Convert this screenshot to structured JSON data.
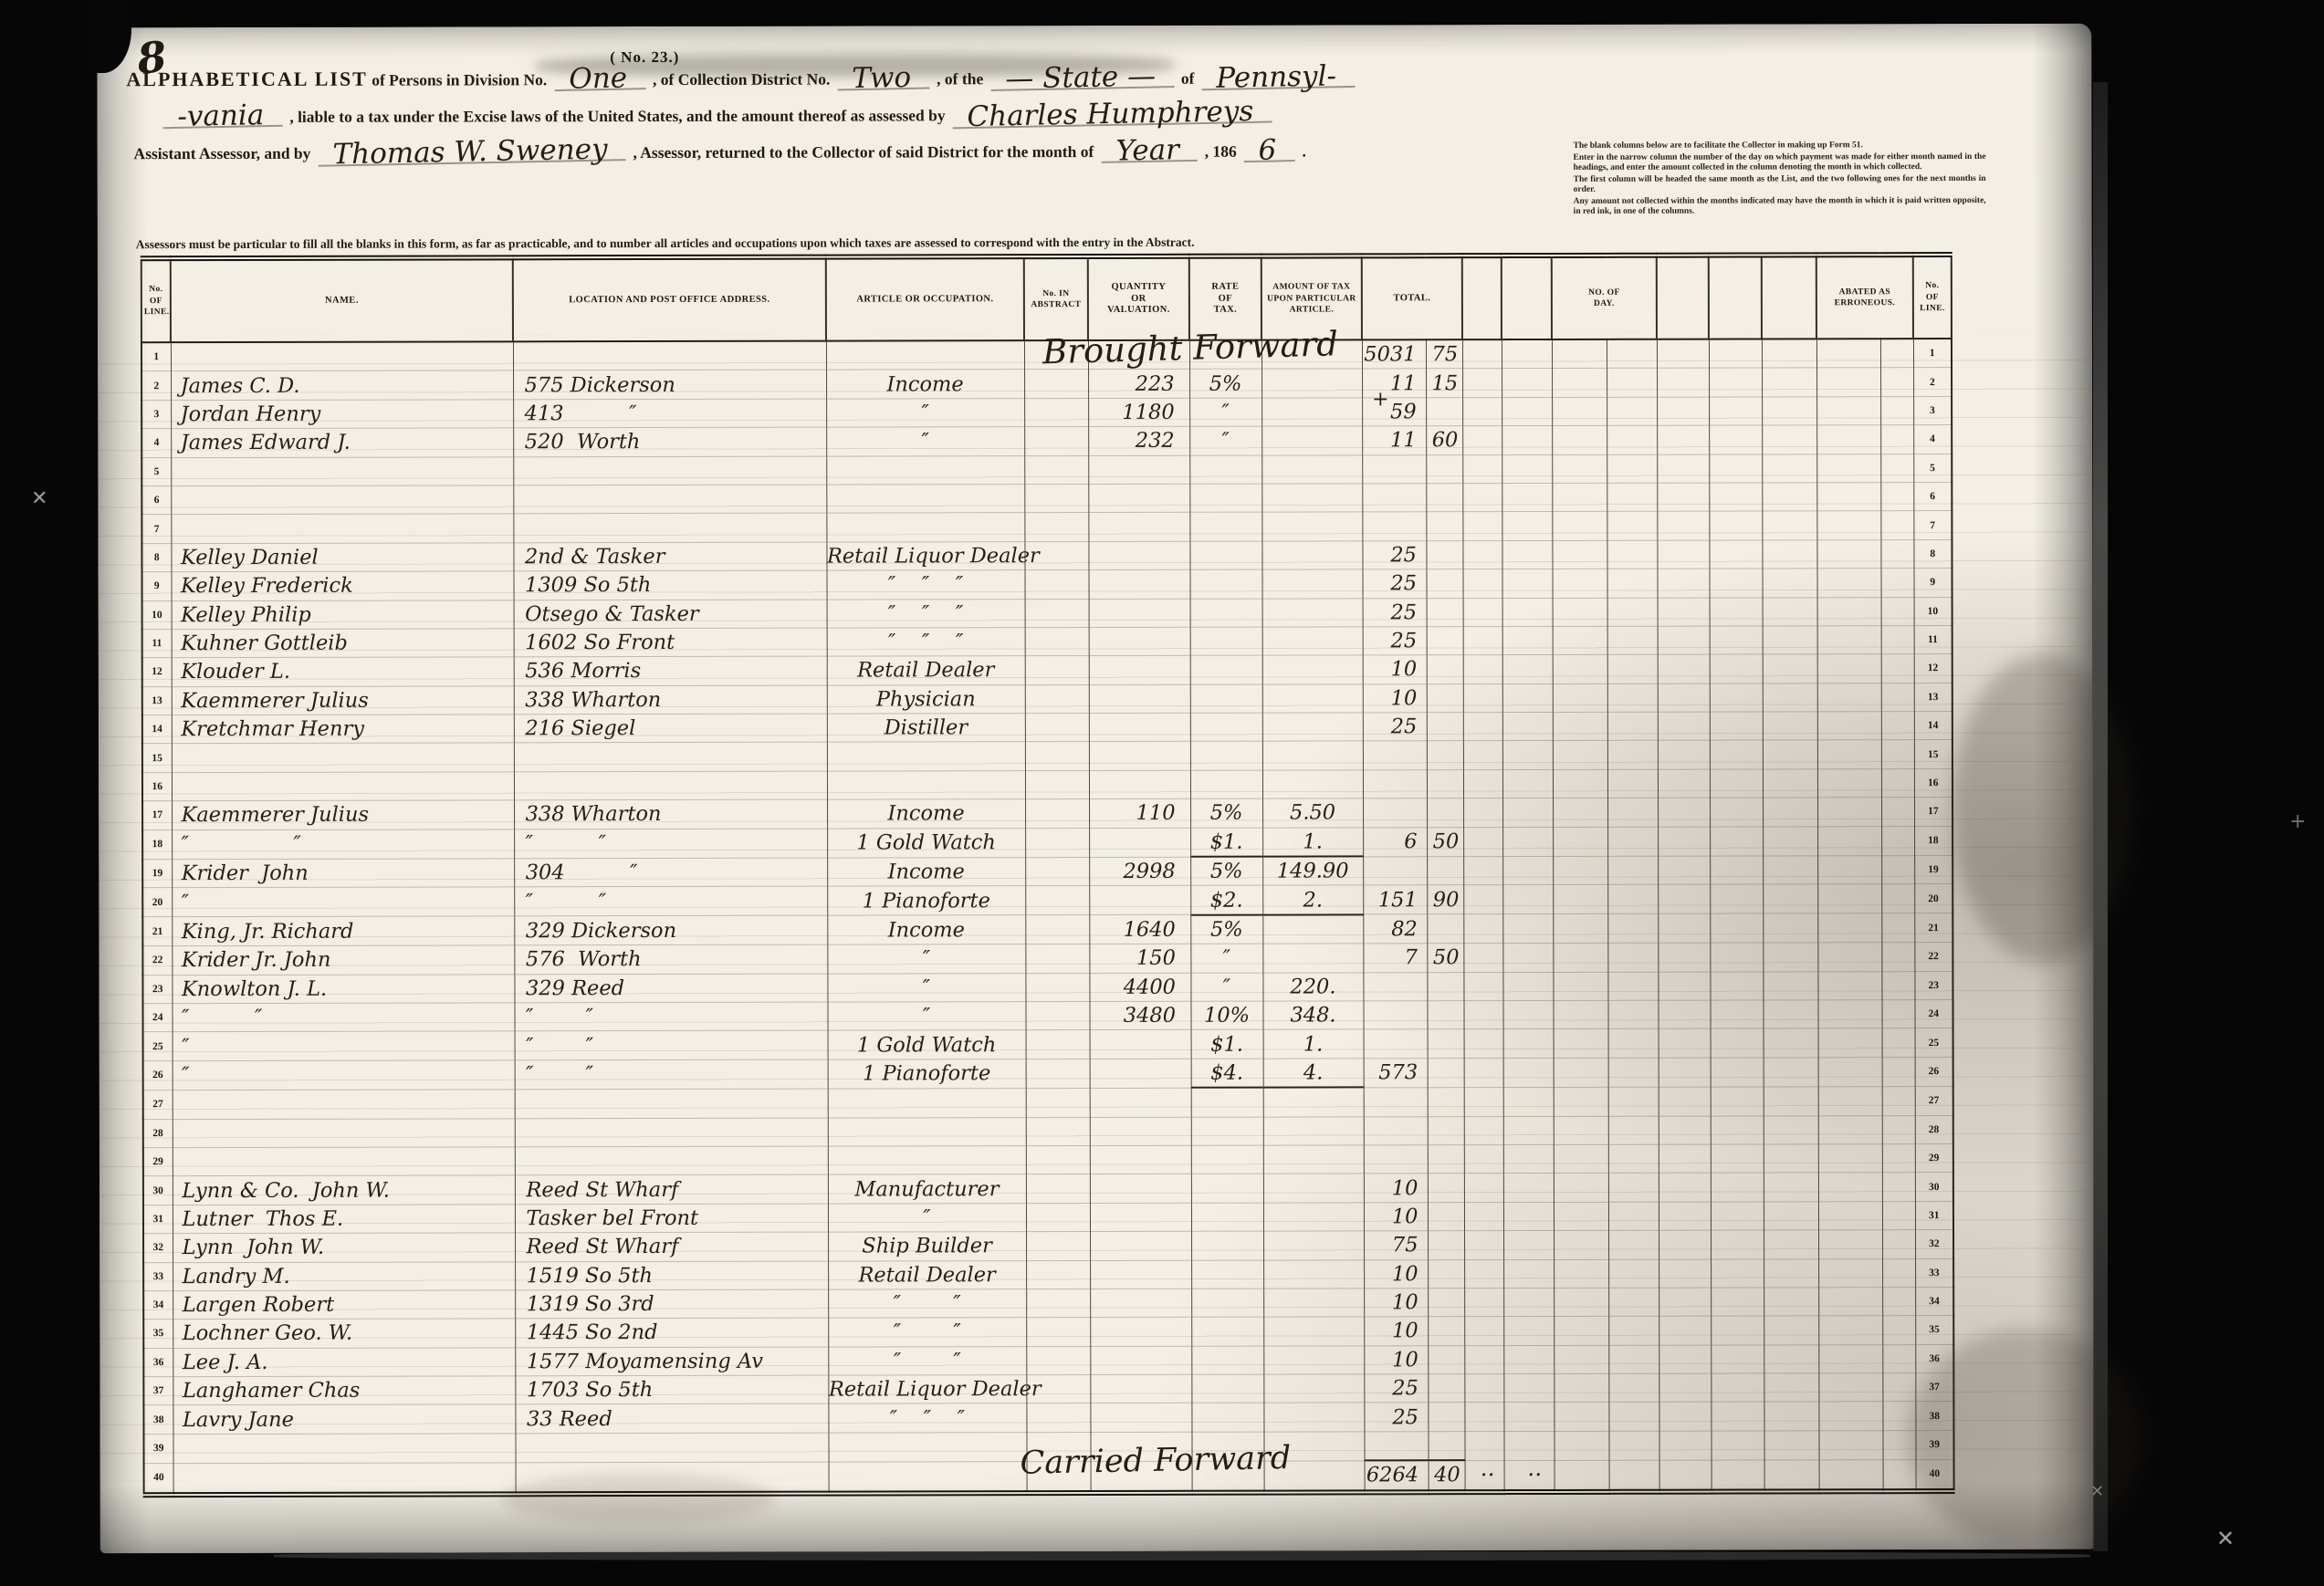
{
  "form_label": "( No. 23.)",
  "page_number": "8",
  "title": {
    "line1": [
      {
        "t": "ALPHABETICAL LIST",
        "w": false
      },
      {
        "t": " of Persons in Division No.",
        "w": false
      },
      {
        "t": "One",
        "w": true
      },
      {
        "t": ", of Collection District No.",
        "w": false
      },
      {
        "t": "Two",
        "w": true
      },
      {
        "t": ", of the",
        "w": false
      },
      {
        "t": "— State —",
        "w": true
      },
      {
        "t": "of",
        "w": false
      },
      {
        "t": "Pennsyl-",
        "w": true
      }
    ],
    "line2": [
      {
        "t": "-vania",
        "w": true
      },
      {
        "t": ", liable to a tax under the Excise laws of the United States, and the amount thereof as assessed by",
        "w": false
      },
      {
        "t": "Charles Humphreys",
        "w": true
      }
    ],
    "line3": [
      {
        "t": "Assistant Assessor, and by",
        "w": false
      },
      {
        "t": "Thomas W. Sweney",
        "w": true
      },
      {
        "t": ", Assessor, returned to the Collector of said District for the month of",
        "w": false
      },
      {
        "t": "Year",
        "w": true
      },
      {
        "t": ", 186",
        "w": false
      },
      {
        "t": "6",
        "w": true
      },
      {
        "t": ".",
        "w": false
      }
    ]
  },
  "collector_note": {
    "l1": "The blank columns below are to facilitate the Collector in making up Form 51.",
    "l2": "Enter in the narrow column the number of the day on which payment was made for either month named in the headings, and enter the amount collected in the column denoting the month in which collected.",
    "l3": "The first column will be headed the same month as the List, and the two following ones for the next months in order.",
    "l4": "Any amount not collected within the months indicated may have the month in which it is paid written opposite, in red ink, in one of the columns."
  },
  "assessor_note": "Assessors must be particular to fill all the blanks in this form, as far as practicable, and to number all articles and occupations upon which taxes are assessed to correspond with the entry in the Abstract.",
  "table": {
    "headers": {
      "line_no": "No.\nOF\nLINE.",
      "name": "NAME.",
      "location": "LOCATION AND POST OFFICE ADDRESS.",
      "article": "ARTICLE OR OCCUPATION.",
      "abstract": "No. IN\nABSTRACT",
      "quantity": "QUANTITY\nOR\nVALUATION.",
      "rate": "RATE\nOF\nTAX.",
      "amount": "AMOUNT OF TAX\nUPON PARTICULAR\nARTICLE.",
      "total": "TOTAL.",
      "day": "NO. OF\nDAY.",
      "abated": "ABATED AS\nERRONEOUS.",
      "line_no_right": "No.\nOF\nLINE."
    },
    "rows": [
      {
        "n": 1,
        "td": "5031",
        "tc": "75",
        "span": "brought"
      },
      {
        "n": 2,
        "name": "James C. D.",
        "loc": "575 Dickerson",
        "occ": "Income",
        "qty": "223",
        "rate": "5%",
        "td": "11",
        "tc": "15"
      },
      {
        "n": 3,
        "name": "Jordan Henry",
        "loc": "413          ″",
        "occ": "″",
        "qty": "1180",
        "rate": "″",
        "td": "59"
      },
      {
        "n": 4,
        "name": "James Edward J.",
        "loc": "520  Worth",
        "occ": "″",
        "qty": "232",
        "rate": "″",
        "td": "11",
        "tc": "60"
      },
      {
        "n": 5
      },
      {
        "n": 6
      },
      {
        "n": 7
      },
      {
        "n": 8,
        "name": "Kelley Daniel",
        "loc": "2nd & Tasker",
        "occ": "Retail Liquor Dealer",
        "td": "25"
      },
      {
        "n": 9,
        "name": "Kelley Frederick",
        "loc": "1309 So 5th",
        "occ": "″    ″    ″",
        "td": "25"
      },
      {
        "n": 10,
        "name": "Kelley Philip",
        "loc": "Otsego & Tasker",
        "occ": "″    ″    ″",
        "td": "25"
      },
      {
        "n": 11,
        "name": "Kuhner Gottleib",
        "loc": "1602 So Front",
        "occ": "″    ″    ″",
        "td": "25"
      },
      {
        "n": 12,
        "name": "Klouder L.",
        "loc": "536 Morris",
        "occ": "Retail Dealer",
        "td": "10"
      },
      {
        "n": 13,
        "name": "Kaemmerer Julius",
        "loc": "338 Wharton",
        "occ": "Physician",
        "td": "10"
      },
      {
        "n": 14,
        "name": "Kretchmar Henry",
        "loc": "216 Siegel",
        "occ": "Distiller",
        "td": "25"
      },
      {
        "n": 15
      },
      {
        "n": 16
      },
      {
        "n": 17,
        "name": "Kaemmerer Julius",
        "loc": "338 Wharton",
        "occ": "Income",
        "qty": "110",
        "rate": "5%",
        "amt": "5.50"
      },
      {
        "n": 18,
        "name": "″                ″",
        "loc": "″          ″",
        "occ": "1 Gold Watch",
        "rate": "$1.",
        "amt": "1.",
        "td": "6",
        "tc": "50",
        "rule": true
      },
      {
        "n": 19,
        "name": "Krider  John",
        "loc": "304          ″",
        "occ": "Income",
        "qty": "2998",
        "rate": "5%",
        "amt": "149.90"
      },
      {
        "n": 20,
        "name": "″",
        "loc": "″          ″",
        "occ": "1 Pianoforte",
        "rate": "$2.",
        "amt": "2.",
        "td": "151",
        "tc": "90",
        "rule": true
      },
      {
        "n": 21,
        "name": "King, Jr. Richard",
        "loc": "329 Dickerson",
        "occ": "Income",
        "qty": "1640",
        "rate": "5%",
        "td": "82"
      },
      {
        "n": 22,
        "name": "Krider Jr. John",
        "loc": "576  Worth",
        "occ": "″",
        "qty": "150",
        "rate": "″",
        "td": "7",
        "tc": "50"
      },
      {
        "n": 23,
        "name": "Knowlton J. L.",
        "loc": "329 Reed",
        "occ": "″",
        "qty": "4400",
        "rate": "″",
        "amt": "220."
      },
      {
        "n": 24,
        "name": "″          ″",
        "loc": "″        ″",
        "occ": "″",
        "qty": "3480",
        "rate": "10%",
        "amt": "348."
      },
      {
        "n": 25,
        "name": "″",
        "loc": "″        ″",
        "occ": "1 Gold Watch",
        "rate": "$1.",
        "amt": "1."
      },
      {
        "n": 26,
        "name": "″",
        "loc": "″        ″",
        "occ": "1 Pianoforte",
        "rate": "$4.",
        "amt": "4.",
        "td": "573",
        "rule": true
      },
      {
        "n": 27
      },
      {
        "n": 28
      },
      {
        "n": 29
      },
      {
        "n": 30,
        "name": "Lynn & Co.  John W.",
        "loc": "Reed St Wharf",
        "occ": "Manufacturer",
        "td": "10"
      },
      {
        "n": 31,
        "name": "Lutner  Thos E.",
        "loc": "Tasker bel Front",
        "occ": "″",
        "td": "10"
      },
      {
        "n": 32,
        "name": "Lynn  John W.",
        "loc": "Reed St Wharf",
        "occ": "Ship Builder",
        "td": "75"
      },
      {
        "n": 33,
        "name": "Landry M.",
        "loc": "1519 So 5th",
        "occ": "Retail Dealer",
        "td": "10"
      },
      {
        "n": 34,
        "name": "Largen Robert",
        "loc": "1319 So 3rd",
        "occ": "″        ″",
        "td": "10"
      },
      {
        "n": 35,
        "name": "Lochner Geo. W.",
        "loc": "1445 So 2nd",
        "occ": "″        ″",
        "td": "10"
      },
      {
        "n": 36,
        "name": "Lee J. A.",
        "loc": "1577 Moyamensing Av",
        "occ": "″        ″",
        "td": "10"
      },
      {
        "n": 37,
        "name": "Langhamer Chas",
        "loc": "1703 So 5th",
        "occ": "Retail Liquor Dealer",
        "td": "25"
      },
      {
        "n": 38,
        "name": "Lavry Jane",
        "loc": "33 Reed",
        "occ": "″    ″    ″",
        "td": "25"
      },
      {
        "n": 39
      },
      {
        "n": 40,
        "td": "6264",
        "tc": "40",
        "span": "carried",
        "box": true
      }
    ]
  },
  "overlays": {
    "brought": "Brought Forward",
    "carried": "Carried Forward",
    "tail": "‥  ‥",
    "plus": "+"
  },
  "marks": {
    "left_cross": "✕",
    "right_plus": "+",
    "bottom_cross_1": "✕",
    "bottom_cross_2": "✕"
  },
  "colors": {
    "paper": "#f3efe5",
    "printed_ink": "#1d1812",
    "handwriting_ink": "#241d16",
    "scan_background": "#060606",
    "faint_rule": "#8a7455"
  }
}
